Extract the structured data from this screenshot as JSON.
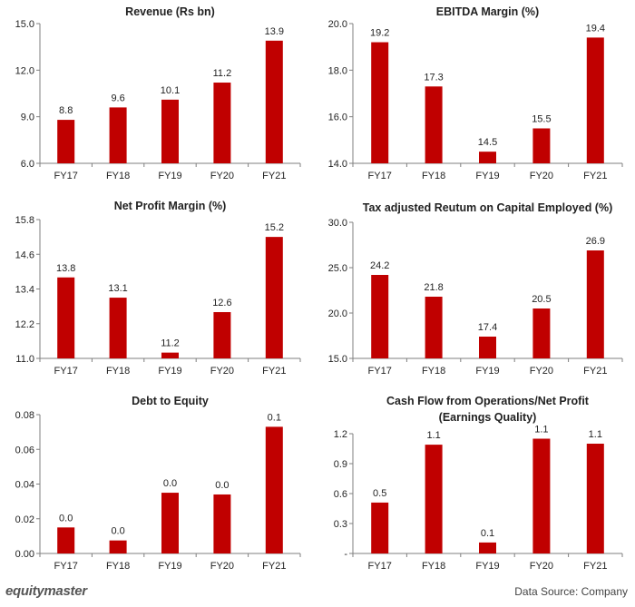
{
  "colors": {
    "bar": "#c00000",
    "axis": "#7f7f7f",
    "text": "#222222"
  },
  "footer": {
    "brand": "equitymaster",
    "source": "Data Source: Company"
  },
  "chart_data": [
    {
      "type": "bar",
      "title": "Revenue (Rs bn)",
      "categories": [
        "FY17",
        "FY18",
        "FY19",
        "FY20",
        "FY21"
      ],
      "values": [
        8.8,
        9.6,
        10.1,
        11.2,
        13.9
      ],
      "value_labels": [
        "8.8",
        "9.6",
        "10.1",
        "11.2",
        "13.9"
      ],
      "ylim": [
        6.0,
        15.0
      ],
      "yticks": [
        6.0,
        9.0,
        12.0,
        15.0
      ],
      "ytick_labels": [
        "6.0",
        "9.0",
        "12.0",
        "15.0"
      ],
      "grid": false,
      "legend": "none"
    },
    {
      "type": "bar",
      "title": "EBITDA Margin (%)",
      "categories": [
        "FY17",
        "FY18",
        "FY19",
        "FY20",
        "FY21"
      ],
      "values": [
        19.2,
        17.3,
        14.5,
        15.5,
        19.4
      ],
      "value_labels": [
        "19.2",
        "17.3",
        "14.5",
        "15.5",
        "19.4"
      ],
      "ylim": [
        14.0,
        20.0
      ],
      "yticks": [
        14.0,
        16.0,
        18.0,
        20.0
      ],
      "ytick_labels": [
        "14.0",
        "16.0",
        "18.0",
        "20.0"
      ],
      "grid": false,
      "legend": "none"
    },
    {
      "type": "bar",
      "title": "Net Profit Margin (%)",
      "categories": [
        "FY17",
        "FY18",
        "FY19",
        "FY20",
        "FY21"
      ],
      "values": [
        13.8,
        13.1,
        11.2,
        12.6,
        15.2
      ],
      "value_labels": [
        "13.8",
        "13.1",
        "11.2",
        "12.6",
        "15.2"
      ],
      "ylim": [
        11.0,
        15.8
      ],
      "yticks": [
        11.0,
        12.2,
        13.4,
        14.6,
        15.8
      ],
      "ytick_labels": [
        "11.0",
        "12.2",
        "13.4",
        "14.6",
        "15.8"
      ],
      "grid": false,
      "legend": "none"
    },
    {
      "type": "bar",
      "title": "Tax adjusted Reutum on Capital Employed (%)",
      "categories": [
        "FY17",
        "FY18",
        "FY19",
        "FY20",
        "FY21"
      ],
      "values": [
        24.2,
        21.8,
        17.4,
        20.5,
        26.9
      ],
      "value_labels": [
        "24.2",
        "21.8",
        "17.4",
        "20.5",
        "26.9"
      ],
      "ylim": [
        15.0,
        30.0
      ],
      "yticks": [
        15.0,
        20.0,
        25.0,
        30.0
      ],
      "ytick_labels": [
        "15.0",
        "20.0",
        "25.0",
        "30.0"
      ],
      "grid": false,
      "legend": "none"
    },
    {
      "type": "bar",
      "title": "Debt to Equity",
      "categories": [
        "FY17",
        "FY18",
        "FY19",
        "FY20",
        "FY21"
      ],
      "values": [
        0.015,
        0.0075,
        0.035,
        0.034,
        0.073
      ],
      "value_labels": [
        "0.0",
        "0.0",
        "0.0",
        "0.0",
        "0.1"
      ],
      "ylim": [
        0.0,
        0.08
      ],
      "yticks": [
        0.0,
        0.02,
        0.04,
        0.06,
        0.08
      ],
      "ytick_labels": [
        "0.00",
        "0.02",
        "0.04",
        "0.06",
        "0.08"
      ],
      "grid": false,
      "legend": "none"
    },
    {
      "type": "bar",
      "title": "Cash Flow from Operations/Net Profit",
      "subtitle": "(Earnings Quality)",
      "categories": [
        "FY17",
        "FY18",
        "FY19",
        "FY20",
        "FY21"
      ],
      "values": [
        0.51,
        1.09,
        0.11,
        1.15,
        1.1
      ],
      "value_labels": [
        "0.5",
        "1.1",
        "0.1",
        "1.1",
        "1.1"
      ],
      "ylim": [
        0.0,
        1.2
      ],
      "yticks": [
        0.0,
        0.3,
        0.6,
        0.9,
        1.2
      ],
      "ytick_labels": [
        "-",
        "0.3",
        "0.6",
        "0.9",
        "1.2"
      ],
      "grid": false,
      "legend": "none"
    }
  ]
}
